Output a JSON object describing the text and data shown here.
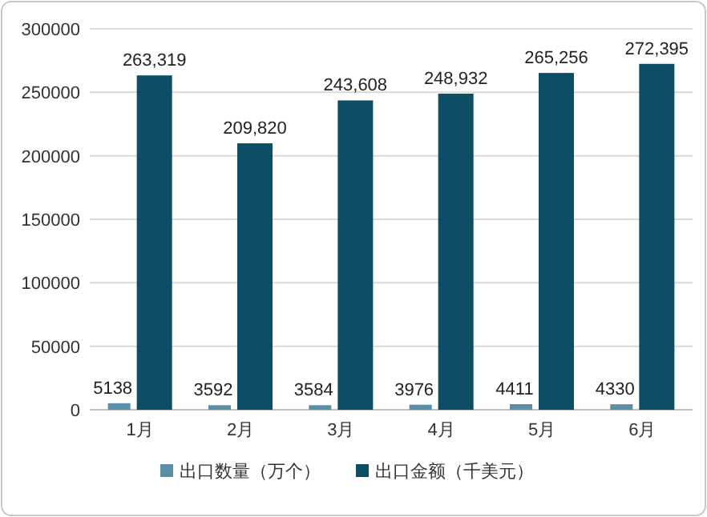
{
  "chart_data": {
    "type": "bar",
    "categories": [
      "1月",
      "2月",
      "3月",
      "4月",
      "5月",
      "6月"
    ],
    "series": [
      {
        "name": "出口数量（万个）",
        "color": "#5a8fa6",
        "values": [
          5138,
          3592,
          3584,
          3976,
          4411,
          4330
        ]
      },
      {
        "name": "出口金额（千美元）",
        "color": "#0d4e66",
        "values": [
          263319,
          209820,
          243608,
          248932,
          265256,
          272395
        ],
        "value_labels": [
          "263,319",
          "209,820",
          "243,608",
          "248,932",
          "265,256",
          "272,395"
        ]
      }
    ],
    "ylim": [
      0,
      300000
    ],
    "yticks": [
      0,
      50000,
      100000,
      150000,
      200000,
      250000,
      300000
    ],
    "grid": "y",
    "legend": "bottom",
    "data_labels": true
  }
}
